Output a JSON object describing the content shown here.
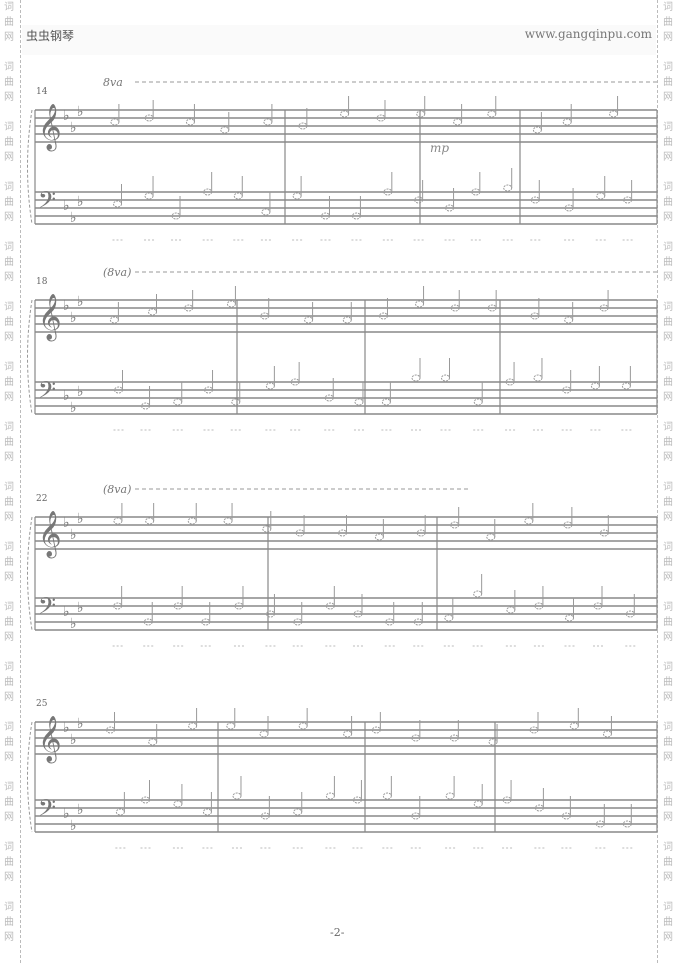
{
  "header": {
    "left": "虫虫钢琴",
    "right": "www.gangqinpu.com"
  },
  "watermark": [
    "词",
    "曲",
    "网"
  ],
  "systems": [
    {
      "measure_number": "14",
      "ottava": "8va",
      "dynamic": "mp"
    },
    {
      "measure_number": "18",
      "ottava": "(8va)"
    },
    {
      "measure_number": "22",
      "ottava": "(8va)"
    },
    {
      "measure_number": "25"
    }
  ],
  "page_number": "-2-",
  "key_signature": "3 flats",
  "clefs": {
    "treble": "𝄞",
    "bass": "𝄢"
  }
}
